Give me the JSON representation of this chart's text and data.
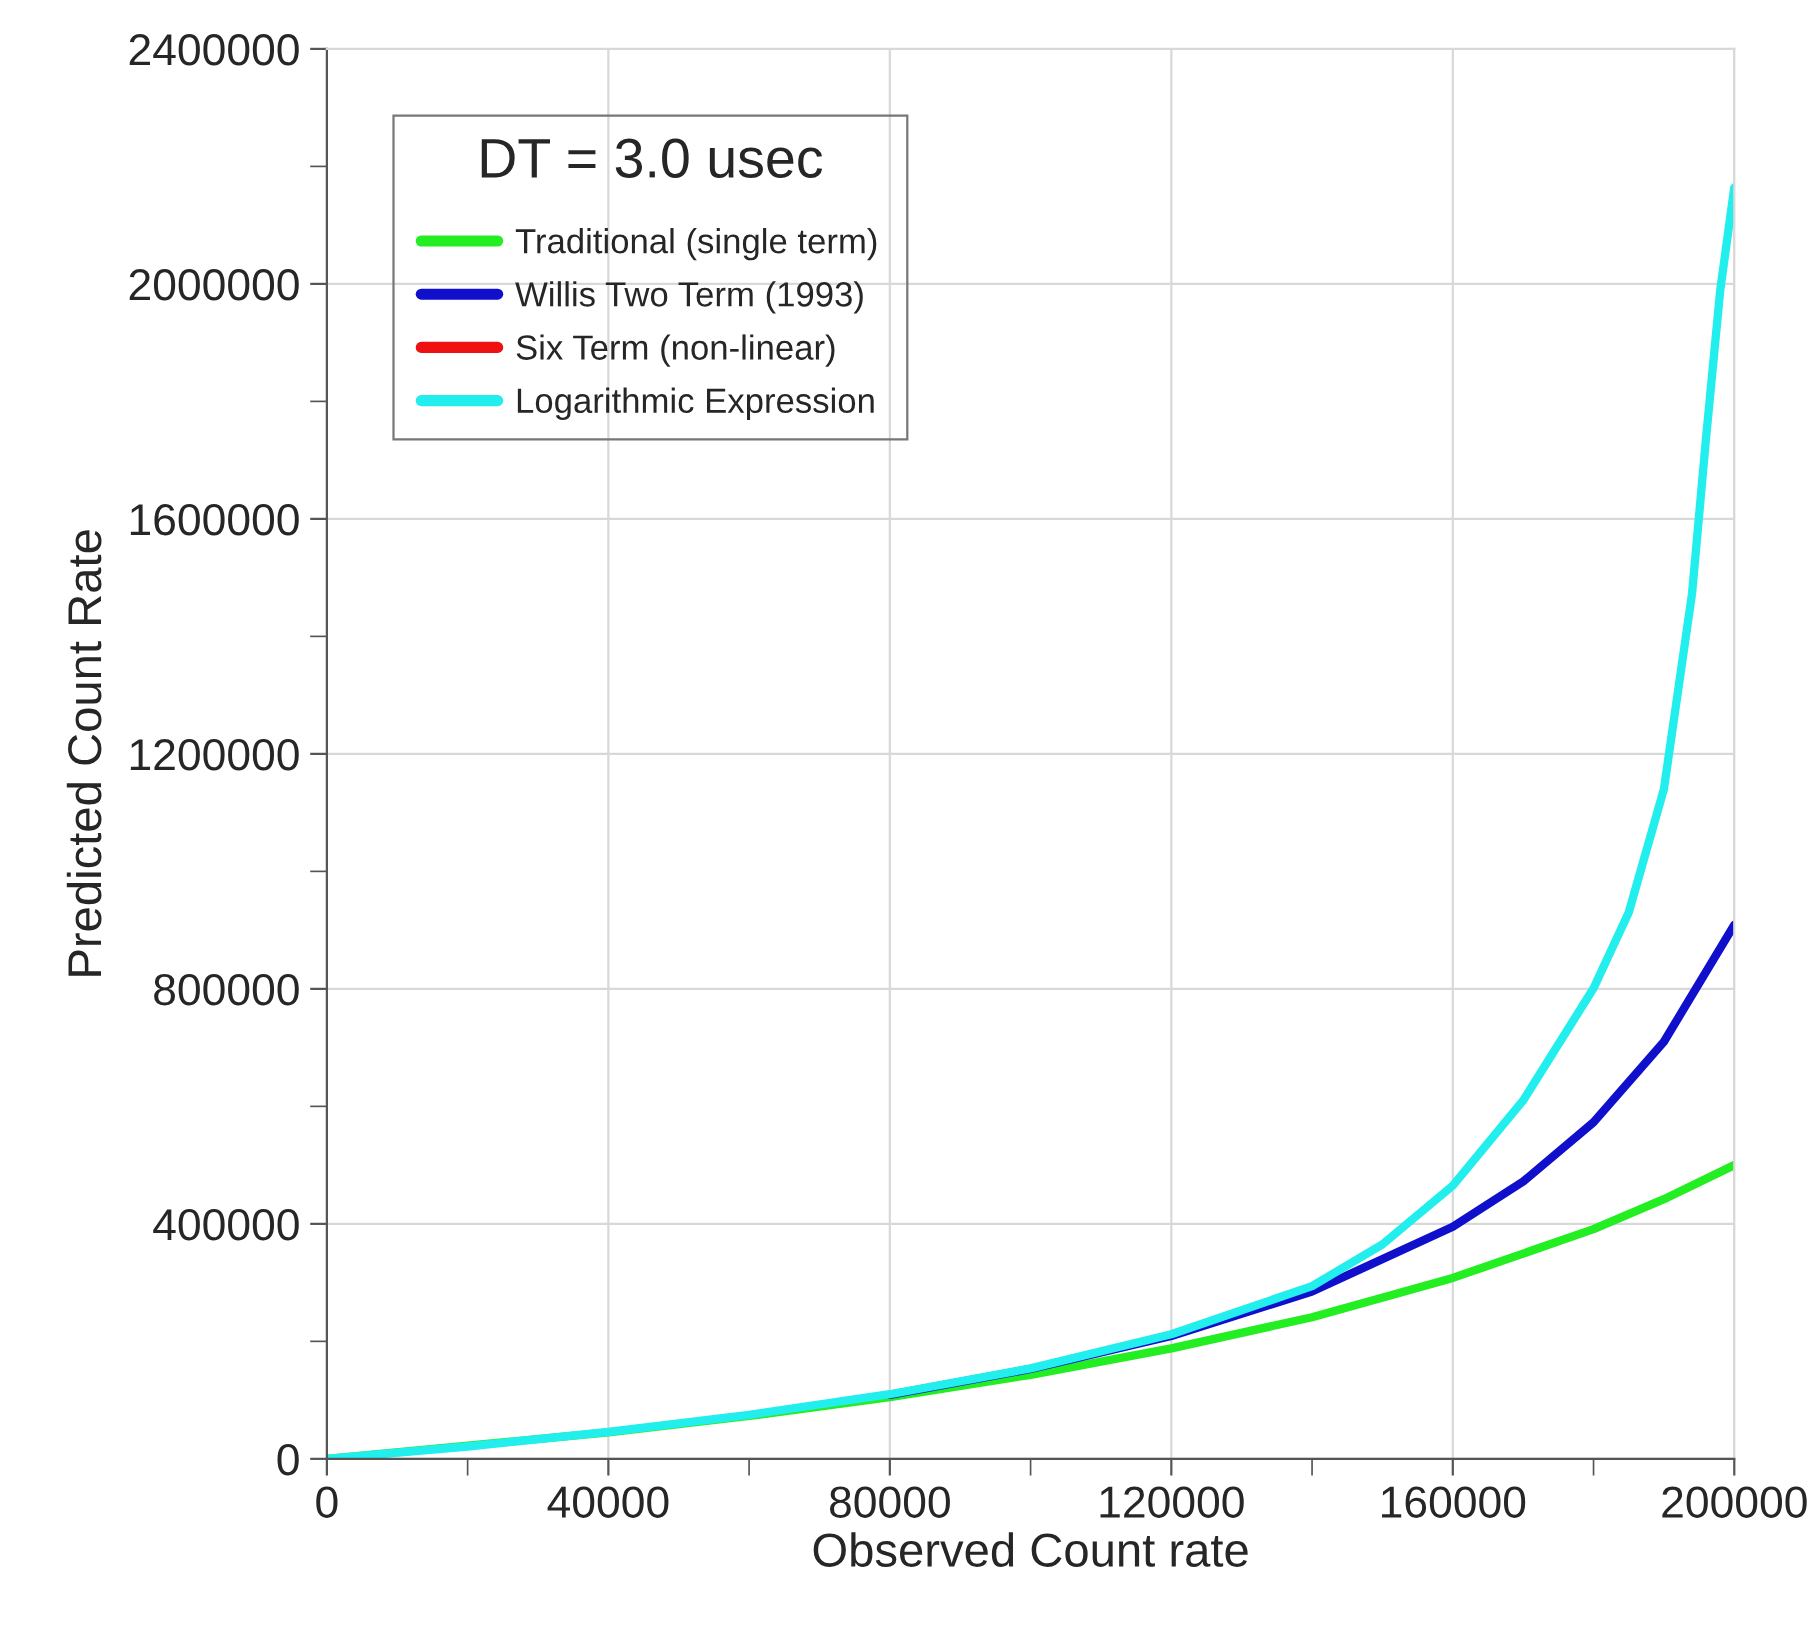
{
  "chart_data": {
    "type": "line",
    "xlabel": "Observed Count rate",
    "ylabel": "Predicted Count Rate",
    "legend_title": "DT = 3.0 usec",
    "xlim": [
      0,
      200000
    ],
    "ylim": [
      0,
      2400000
    ],
    "xticks": [
      0,
      {
        "value": 20000,
        "label": null
      },
      40000,
      {
        "value": 60000,
        "label": null
      },
      80000,
      {
        "value": 100000,
        "label": null
      },
      120000,
      {
        "value": 140000,
        "label": null
      },
      160000,
      {
        "value": 180000,
        "label": null
      },
      200000
    ],
    "yticks": [
      0,
      {
        "value": 200000,
        "label": null
      },
      400000,
      {
        "value": 600000,
        "label": null
      },
      800000,
      {
        "value": 1000000,
        "label": null
      },
      1200000,
      {
        "value": 1400000,
        "label": null
      },
      1600000,
      {
        "value": 1800000,
        "label": null
      },
      2000000,
      {
        "value": 2200000,
        "label": null
      },
      2400000
    ],
    "grid": true,
    "legend": "top left",
    "line_style": "solid",
    "marker": "none",
    "series": [
      {
        "name": "Traditional (single term)",
        "color": "#22ee22",
        "x": [
          0,
          40000,
          60000,
          80000,
          100000,
          120000,
          140000,
          160000,
          180000,
          190000,
          200000
        ],
        "values": [
          0,
          45000,
          73000,
          105000,
          143000,
          188000,
          241000,
          308000,
          391000,
          442000,
          500000
        ]
      },
      {
        "name": "Willis Two Term (1993)",
        "color": "#1010cc",
        "x": [
          80000,
          100000,
          120000,
          140000,
          160000,
          170000,
          180000,
          190000,
          200000
        ],
        "values": [
          109000,
          153000,
          209000,
          285000,
          395000,
          472000,
          573000,
          710000,
          909000
        ]
      },
      {
        "name": "Six Term (non-linear)",
        "color": "#ee1111"
      },
      {
        "name": "Logarithmic Expression",
        "color": "#22eeee",
        "x": [
          0,
          20000,
          40000,
          60000,
          80000,
          100000,
          120000,
          140000,
          150000,
          160000,
          170000,
          180000,
          185000,
          190000,
          194000,
          196000,
          198000,
          200000
        ],
        "values": [
          0,
          21000,
          46000,
          75000,
          110000,
          154000,
          212000,
          294000,
          365000,
          465000,
          610000,
          801000,
          930000,
          1140000,
          1473000,
          1739000,
          1989000,
          2164000
        ]
      }
    ]
  }
}
